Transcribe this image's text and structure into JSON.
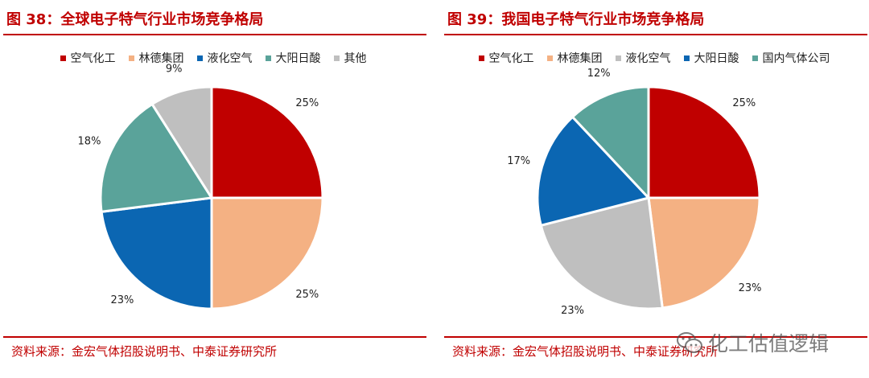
{
  "left_panel": {
    "title": "图 38：全球电子特气行业市场竞争格局",
    "source": "资料来源：金宏气体招股说明书、中泰证券研究所"
  },
  "right_panel": {
    "title": "图 39：我国电子特气行业市场竞争格局",
    "source": "资料来源：金宏气体招股说明书、中泰证券研究所"
  },
  "watermark": {
    "text": "化工估值逻辑",
    "icon": "wechat-icon"
  },
  "colors": {
    "accent": "#c00000",
    "空气化工": "#c00000",
    "林德集团": "#f4b183",
    "液化空气": "#0b66b2",
    "大阳日酸": "#5aa39a",
    "其他": "#bfbfbf",
    "国内气体公司": "#5aa39a"
  },
  "chart_data": [
    {
      "type": "pie",
      "title": "全球电子特气行业市场竞争格局",
      "categories": [
        "空气化工",
        "林德集团",
        "液化空气",
        "大阳日酸",
        "其他"
      ],
      "values": [
        25,
        25,
        23,
        18,
        9
      ],
      "labels": [
        "25%",
        "25%",
        "23%",
        "18%",
        "9%"
      ],
      "colors": [
        "#c00000",
        "#f4b183",
        "#0b66b2",
        "#5aa39a",
        "#bfbfbf"
      ],
      "legend": "top"
    },
    {
      "type": "pie",
      "title": "我国电子特气行业市场竞争格局",
      "categories": [
        "空气化工",
        "林德集团",
        "液化空气",
        "大阳日酸",
        "国内气体公司"
      ],
      "values": [
        25,
        23,
        23,
        17,
        12
      ],
      "labels": [
        "25%",
        "23%",
        "23%",
        "17%",
        "12%"
      ],
      "colors": [
        "#c00000",
        "#f4b183",
        "#bfbfbf",
        "#0b66b2",
        "#5aa39a"
      ],
      "legend": "top"
    }
  ]
}
